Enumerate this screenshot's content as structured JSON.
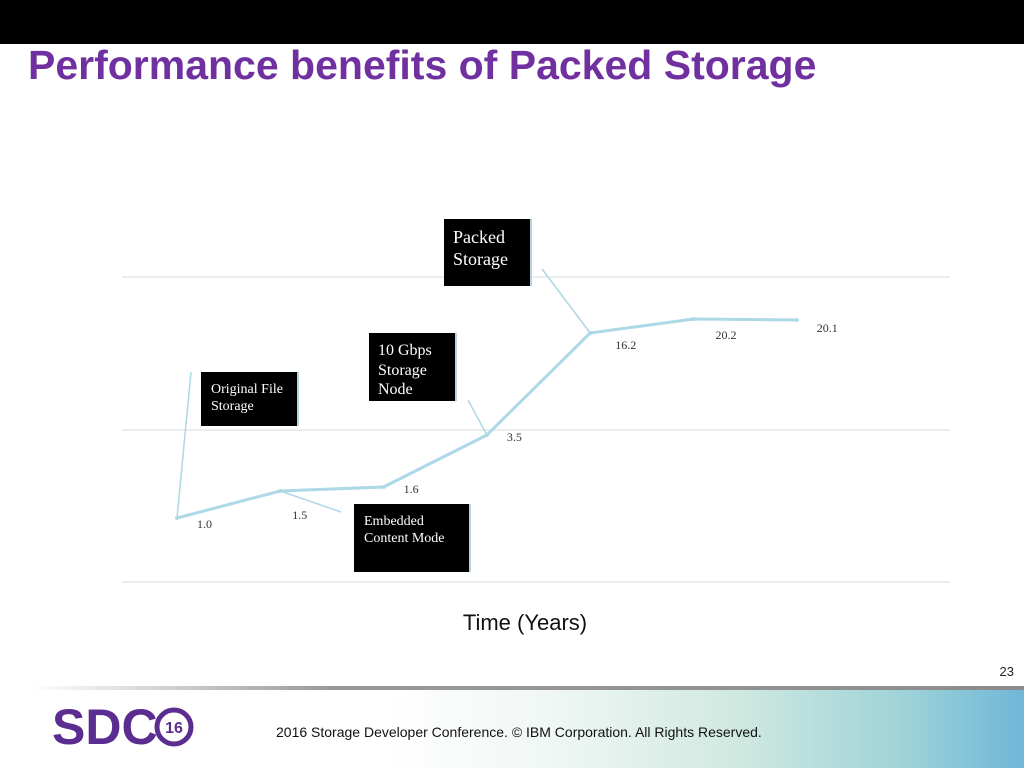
{
  "slide": {
    "title": "Performance benefits of Packed Storage",
    "slide_number": "23",
    "footer_text": "2016 Storage  Developer Conference. © IBM Corporation.  All Rights Reserved.",
    "logo_text": "SDC",
    "logo_year": "16"
  },
  "chart_data": {
    "type": "line",
    "title": "",
    "xlabel": "Time (Years)",
    "ylabel": "",
    "x": [
      1,
      2,
      3,
      4,
      5,
      6,
      7
    ],
    "series": [
      {
        "values": [
          1.0,
          1.5,
          1.6,
          3.5,
          16.2,
          20.2,
          20.1
        ],
        "labels": [
          "1.0",
          "1.5",
          "1.6",
          "3.5",
          "16.2",
          "20.2",
          "20.1"
        ]
      }
    ],
    "grid": true,
    "line_color": "#add8e6",
    "annotations": [
      {
        "text": [
          "Original File",
          "Storage"
        ],
        "point_index": 0
      },
      {
        "text": [
          "Embedded",
          "Content Mode"
        ],
        "point_index": 1
      },
      {
        "text": [
          "10 Gbps",
          "Storage",
          "Node"
        ],
        "point_index": 3
      },
      {
        "text": [
          "Packed",
          "Storage"
        ],
        "point_index": 4
      }
    ]
  }
}
